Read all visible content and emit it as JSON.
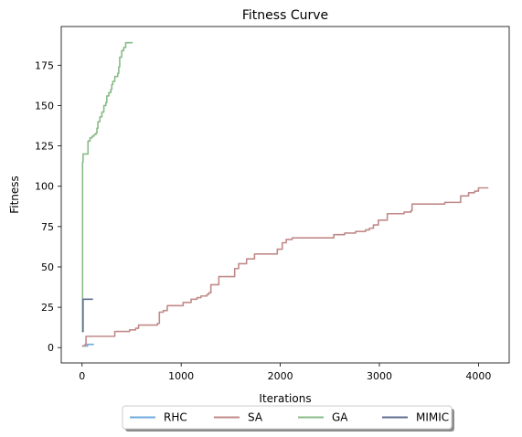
{
  "chart_data": {
    "type": "line",
    "title": "Fitness Curve",
    "xlabel": "Iterations",
    "ylabel": "Fitness",
    "xlim": [
      -210,
      4310
    ],
    "ylim": [
      -9.5,
      199
    ],
    "xticks": [
      0,
      1000,
      2000,
      3000,
      4000
    ],
    "yticks": [
      0,
      25,
      50,
      75,
      100,
      125,
      150,
      175
    ],
    "grid": false,
    "legend_placement": "bottom-center",
    "series": [
      {
        "name": "RHC",
        "color": "#6fa8dc",
        "step": true,
        "points": [
          [
            0,
            1
          ],
          [
            50,
            1
          ],
          [
            55,
            2
          ],
          [
            120,
            2
          ]
        ]
      },
      {
        "name": "SA",
        "color": "#c08a89",
        "step": true,
        "points": [
          [
            0,
            1
          ],
          [
            30,
            2
          ],
          [
            40,
            7
          ],
          [
            320,
            7
          ],
          [
            330,
            10
          ],
          [
            480,
            11
          ],
          [
            540,
            12
          ],
          [
            570,
            14
          ],
          [
            740,
            14
          ],
          [
            760,
            15
          ],
          [
            780,
            22
          ],
          [
            820,
            23
          ],
          [
            860,
            26
          ],
          [
            1000,
            26
          ],
          [
            1020,
            28
          ],
          [
            1100,
            30
          ],
          [
            1160,
            31
          ],
          [
            1200,
            32
          ],
          [
            1260,
            33
          ],
          [
            1280,
            34
          ],
          [
            1300,
            39
          ],
          [
            1380,
            44
          ],
          [
            1540,
            49
          ],
          [
            1580,
            52
          ],
          [
            1660,
            55
          ],
          [
            1740,
            58
          ],
          [
            1940,
            58
          ],
          [
            1970,
            61
          ],
          [
            2020,
            65
          ],
          [
            2060,
            67
          ],
          [
            2120,
            68
          ],
          [
            2500,
            68
          ],
          [
            2540,
            70
          ],
          [
            2650,
            71
          ],
          [
            2760,
            72
          ],
          [
            2860,
            73
          ],
          [
            2900,
            74
          ],
          [
            2940,
            76
          ],
          [
            2990,
            79
          ],
          [
            3080,
            83
          ],
          [
            3250,
            84
          ],
          [
            3320,
            85
          ],
          [
            3330,
            89
          ],
          [
            3660,
            90
          ],
          [
            3800,
            90
          ],
          [
            3820,
            94
          ],
          [
            3900,
            96
          ],
          [
            3960,
            97
          ],
          [
            4000,
            99
          ],
          [
            4100,
            99
          ]
        ]
      },
      {
        "name": "GA",
        "color": "#88bb88",
        "step": true,
        "points": [
          [
            0,
            10
          ],
          [
            5,
            115
          ],
          [
            10,
            120
          ],
          [
            50,
            120
          ],
          [
            60,
            128
          ],
          [
            80,
            130
          ],
          [
            100,
            131
          ],
          [
            120,
            132
          ],
          [
            140,
            133
          ],
          [
            150,
            136
          ],
          [
            160,
            140
          ],
          [
            180,
            143
          ],
          [
            200,
            146
          ],
          [
            220,
            150
          ],
          [
            240,
            152
          ],
          [
            250,
            156
          ],
          [
            270,
            158
          ],
          [
            290,
            160
          ],
          [
            300,
            163
          ],
          [
            310,
            165
          ],
          [
            330,
            168
          ],
          [
            360,
            170
          ],
          [
            370,
            174
          ],
          [
            380,
            180
          ],
          [
            400,
            184
          ],
          [
            420,
            186
          ],
          [
            440,
            189
          ],
          [
            510,
            189
          ]
        ]
      },
      {
        "name": "MIMIC",
        "color": "#5f6f8f",
        "step": true,
        "points": [
          [
            0,
            10
          ],
          [
            10,
            30
          ],
          [
            110,
            30
          ]
        ]
      }
    ]
  }
}
